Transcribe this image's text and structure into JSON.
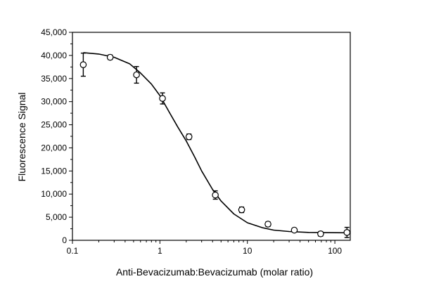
{
  "chart_data": {
    "type": "scatter",
    "xlabel": "Anti-Bevacizumab:Bevacizumab (molar ratio)",
    "ylabel": "Fluorescence Signal",
    "x_scale": "log",
    "xlim": [
      0.1,
      150
    ],
    "ylim": [
      0,
      45000
    ],
    "x_ticks": [
      0.1,
      1,
      10,
      100
    ],
    "x_tick_labels": [
      "0.1",
      "1",
      "10",
      "100"
    ],
    "y_ticks": [
      0,
      5000,
      10000,
      15000,
      20000,
      25000,
      30000,
      35000,
      40000,
      45000
    ],
    "y_tick_labels": [
      "0",
      "5,000",
      "10,000",
      "15,000",
      "20,000",
      "25,000",
      "30,000",
      "35,000",
      "40,000",
      "45,000"
    ],
    "grid": false,
    "points": [
      {
        "x": 0.133,
        "y": 38000,
        "err": 2500
      },
      {
        "x": 0.27,
        "y": 39600,
        "err": 500
      },
      {
        "x": 0.54,
        "y": 35800,
        "err": 1800
      },
      {
        "x": 1.07,
        "y": 30700,
        "err": 1200
      },
      {
        "x": 2.15,
        "y": 22400,
        "err": 600
      },
      {
        "x": 4.3,
        "y": 9800,
        "err": 900
      },
      {
        "x": 8.6,
        "y": 6600,
        "err": 600
      },
      {
        "x": 17.2,
        "y": 3500,
        "err": 500
      },
      {
        "x": 34.4,
        "y": 2200,
        "err": 400
      },
      {
        "x": 68.8,
        "y": 1400,
        "err": 500
      },
      {
        "x": 137.5,
        "y": 1700,
        "err": 1100
      }
    ],
    "fit_curve": [
      {
        "x": 0.133,
        "y": 40600
      },
      {
        "x": 0.2,
        "y": 40300
      },
      {
        "x": 0.3,
        "y": 39600
      },
      {
        "x": 0.45,
        "y": 38200
      },
      {
        "x": 0.6,
        "y": 36200
      },
      {
        "x": 0.8,
        "y": 33800
      },
      {
        "x": 1.0,
        "y": 31300
      },
      {
        "x": 1.3,
        "y": 27500
      },
      {
        "x": 1.6,
        "y": 24500
      },
      {
        "x": 2.0,
        "y": 21500
      },
      {
        "x": 2.5,
        "y": 18000
      },
      {
        "x": 3.0,
        "y": 15000
      },
      {
        "x": 4.0,
        "y": 11000
      },
      {
        "x": 5.0,
        "y": 8500
      },
      {
        "x": 7.0,
        "y": 5700
      },
      {
        "x": 10.0,
        "y": 3800
      },
      {
        "x": 15.0,
        "y": 2700
      },
      {
        "x": 20.0,
        "y": 2200
      },
      {
        "x": 30.0,
        "y": 1900
      },
      {
        "x": 50.0,
        "y": 1700
      },
      {
        "x": 80.0,
        "y": 1650
      },
      {
        "x": 137.5,
        "y": 1620
      }
    ],
    "point_color": "#000000",
    "line_color": "#000000"
  }
}
